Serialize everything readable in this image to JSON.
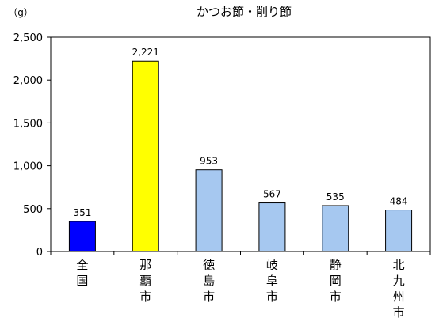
{
  "chart_data": {
    "type": "bar",
    "title": "かつお節・削り節",
    "ylabel": "（g）",
    "xlabel": "",
    "ylim": [
      0,
      2500
    ],
    "yticks": [
      0,
      500,
      1000,
      1500,
      2000,
      2500
    ],
    "ytick_labels": [
      "0",
      "500",
      "1,000",
      "1,500",
      "2,000",
      "2,500"
    ],
    "grid": false,
    "legend": "none",
    "categories": [
      "全国",
      "那覇市",
      "徳島市",
      "岐阜市",
      "静岡市",
      "北九州市"
    ],
    "values": [
      351,
      2221,
      953,
      567,
      535,
      484
    ],
    "data_labels": [
      "351",
      "2,221",
      "953",
      "567",
      "535",
      "484"
    ],
    "colors": [
      "#0000FF",
      "#FFFF00",
      "#A6C8F0",
      "#A6C8F0",
      "#A6C8F0",
      "#A6C8F0"
    ],
    "bar_edge_color": "#000000"
  }
}
